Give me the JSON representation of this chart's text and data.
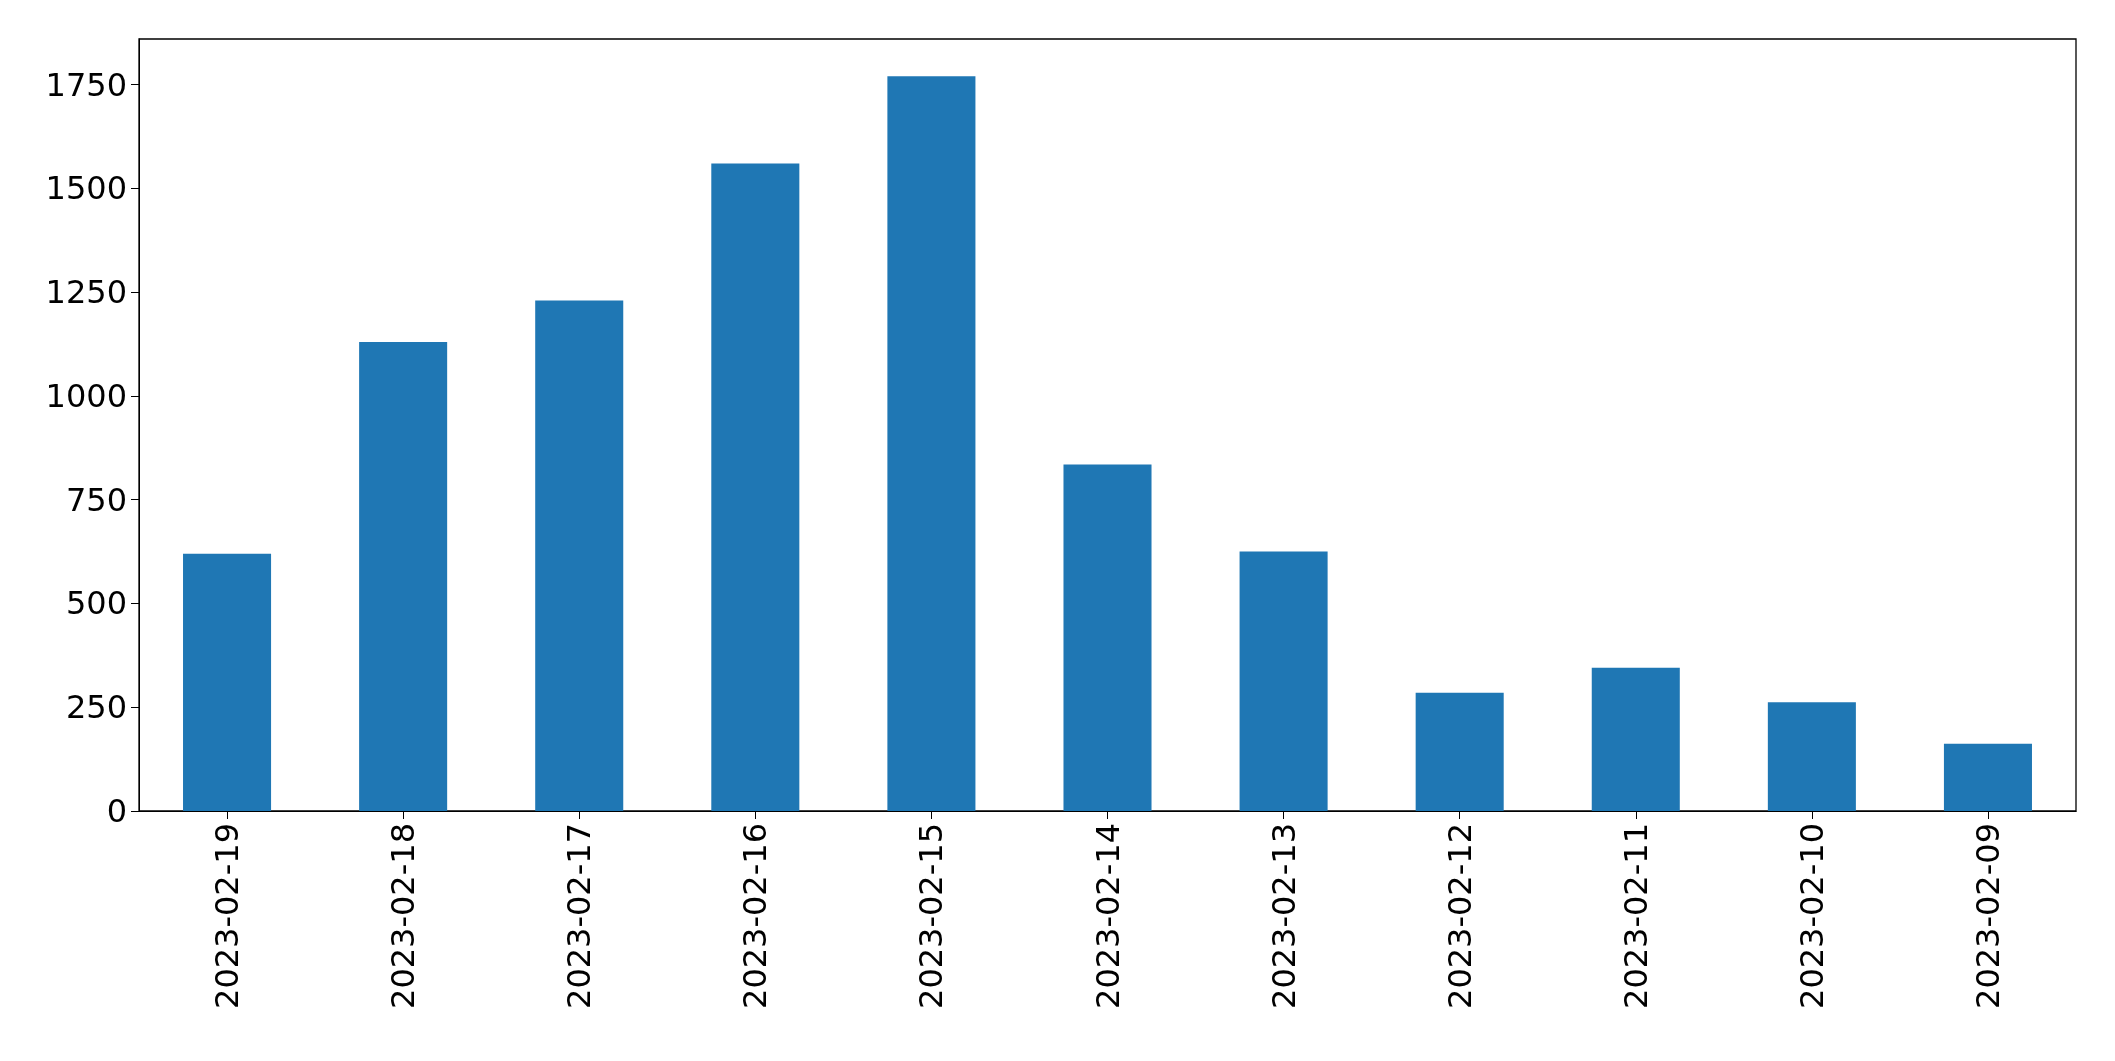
{
  "chart_data": {
    "type": "bar",
    "categories": [
      "2023-02-19",
      "2023-02-18",
      "2023-02-17",
      "2023-02-16",
      "2023-02-15",
      "2023-02-14",
      "2023-02-13",
      "2023-02-12",
      "2023-02-11",
      "2023-02-10",
      "2023-02-09"
    ],
    "values": [
      620,
      1130,
      1230,
      1560,
      1770,
      835,
      625,
      285,
      345,
      262,
      162
    ],
    "color": "#1f77b4",
    "ylim": [
      0,
      1860
    ],
    "yticks": [
      0,
      250,
      500,
      750,
      1000,
      1250,
      1500,
      1750
    ],
    "grid": false
  }
}
